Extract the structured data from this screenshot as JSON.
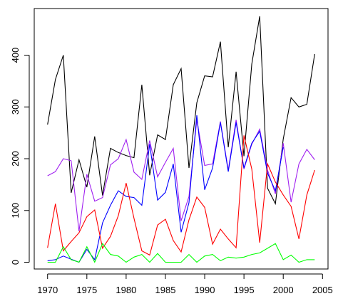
{
  "chart_data": {
    "type": "line",
    "title": "",
    "xlabel": "",
    "ylabel": "",
    "xlim": [
      1968.3,
      2005.7
    ],
    "ylim": [
      -13,
      490
    ],
    "x_ticks": [
      1970,
      1975,
      1980,
      1985,
      1990,
      1995,
      2000,
      2005
    ],
    "y_ticks": [
      0,
      100,
      200,
      300,
      400
    ],
    "grid": false,
    "legend": "none",
    "x": [
      1970,
      1971,
      1972,
      1973,
      1974,
      1975,
      1976,
      1977,
      1978,
      1979,
      1980,
      1981,
      1982,
      1983,
      1984,
      1985,
      1986,
      1987,
      1988,
      1989,
      1990,
      1991,
      1992,
      1993,
      1994,
      1995,
      1996,
      1997,
      1998,
      1999,
      2000,
      2001,
      2002,
      2003,
      2004
    ],
    "series": [
      {
        "color": "#000000",
        "values": [
          266,
          353,
          400,
          134,
          198,
          145,
          243,
          129,
          220,
          212,
          206,
          202,
          343,
          168,
          246,
          237,
          343,
          374,
          182,
          308,
          360,
          358,
          426,
          222,
          368,
          205,
          383,
          475,
          143,
          113,
          238,
          318,
          300,
          305,
          402
        ]
      },
      {
        "color": "#a020f0",
        "values": [
          167,
          175,
          200,
          196,
          60,
          170,
          118,
          125,
          188,
          200,
          237,
          174,
          160,
          235,
          165,
          193,
          220,
          80,
          127,
          275,
          187,
          190,
          272,
          178,
          275,
          180,
          228,
          257,
          178,
          132,
          230,
          116,
          190,
          218,
          198
        ]
      },
      {
        "color": "#0000ff",
        "values": [
          3,
          5,
          12,
          6,
          0,
          25,
          5,
          76,
          110,
          138,
          127,
          125,
          110,
          228,
          120,
          135,
          190,
          58,
          115,
          284,
          140,
          182,
          270,
          175,
          270,
          182,
          230,
          253,
          172,
          138,
          222,
          null,
          null,
          null,
          null
        ]
      },
      {
        "color": "#ff0000",
        "values": [
          28,
          113,
          22,
          40,
          57,
          88,
          101,
          27,
          50,
          90,
          153,
          85,
          22,
          14,
          72,
          83,
          42,
          20,
          82,
          126,
          106,
          35,
          64,
          45,
          28,
          245,
          180,
          38,
          190,
          155,
          130,
          108,
          45,
          130,
          178
        ]
      },
      {
        "color": "#00ff00",
        "values": [
          0,
          0,
          30,
          5,
          0,
          30,
          0,
          36,
          15,
          12,
          0,
          10,
          15,
          0,
          17,
          0,
          0,
          0,
          15,
          0,
          12,
          15,
          3,
          10,
          8,
          10,
          15,
          18,
          27,
          36,
          5,
          14,
          0,
          5,
          5
        ]
      }
    ]
  }
}
